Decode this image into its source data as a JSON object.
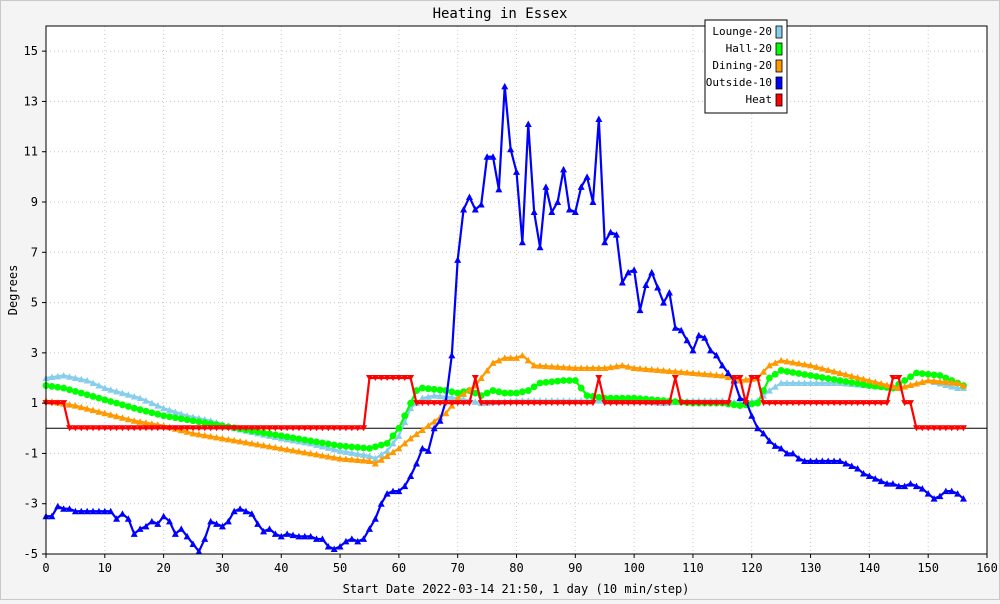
{
  "chart_data": {
    "type": "line",
    "title": "Heating in Essex",
    "xlabel": "Start Date 2022-03-14 21:50, 1 day (10 min/step)",
    "ylabel": "Degrees",
    "xlim": [
      0,
      160
    ],
    "ylim": [
      -5,
      16
    ],
    "xticks": [
      0,
      10,
      20,
      30,
      40,
      50,
      60,
      70,
      80,
      90,
      100,
      110,
      120,
      130,
      140,
      150,
      160
    ],
    "yticks": [
      -5,
      -3,
      -1,
      1,
      3,
      5,
      7,
      9,
      11,
      13,
      15
    ],
    "grid": true,
    "legend_position": "top-right",
    "series": [
      {
        "name": "Lounge-20",
        "color": "#87ceeb",
        "marker": "triangle",
        "points": [
          [
            0,
            2.0
          ],
          [
            3,
            2.1
          ],
          [
            5,
            2.0
          ],
          [
            7,
            1.9
          ],
          [
            10,
            1.6
          ],
          [
            13,
            1.4
          ],
          [
            16,
            1.2
          ],
          [
            20,
            0.8
          ],
          [
            24,
            0.5
          ],
          [
            28,
            0.3
          ],
          [
            32,
            0.0
          ],
          [
            36,
            -0.2
          ],
          [
            40,
            -0.4
          ],
          [
            45,
            -0.6
          ],
          [
            50,
            -0.9
          ],
          [
            55,
            -1.1
          ],
          [
            56,
            -1.2
          ],
          [
            58,
            -0.9
          ],
          [
            60,
            -0.3
          ],
          [
            62,
            0.8
          ],
          [
            64,
            1.2
          ],
          [
            66,
            1.3
          ],
          [
            70,
            1.2
          ],
          [
            72,
            1.1
          ],
          [
            74,
            1.0
          ],
          [
            80,
            1.1
          ],
          [
            85,
            1.1
          ],
          [
            90,
            1.1
          ],
          [
            95,
            1.1
          ],
          [
            100,
            1.1
          ],
          [
            105,
            1.0
          ],
          [
            110,
            1.1
          ],
          [
            115,
            1.1
          ],
          [
            118,
            1.0
          ],
          [
            121,
            1.1
          ],
          [
            123,
            1.5
          ],
          [
            125,
            1.8
          ],
          [
            130,
            1.8
          ],
          [
            135,
            1.8
          ],
          [
            140,
            1.7
          ],
          [
            145,
            1.6
          ],
          [
            150,
            1.9
          ],
          [
            155,
            1.6
          ],
          [
            156,
            1.6
          ]
        ]
      },
      {
        "name": "Hall-20",
        "color": "#00ff00",
        "marker": "circle",
        "points": [
          [
            0,
            1.7
          ],
          [
            3,
            1.6
          ],
          [
            6,
            1.4
          ],
          [
            9,
            1.2
          ],
          [
            12,
            1.0
          ],
          [
            15,
            0.8
          ],
          [
            20,
            0.5
          ],
          [
            25,
            0.3
          ],
          [
            30,
            0.1
          ],
          [
            35,
            -0.1
          ],
          [
            40,
            -0.3
          ],
          [
            45,
            -0.5
          ],
          [
            50,
            -0.7
          ],
          [
            55,
            -0.8
          ],
          [
            58,
            -0.6
          ],
          [
            60,
            0.0
          ],
          [
            62,
            1.0
          ],
          [
            63,
            1.5
          ],
          [
            64,
            1.6
          ],
          [
            68,
            1.5
          ],
          [
            70,
            1.4
          ],
          [
            72,
            1.5
          ],
          [
            74,
            1.3
          ],
          [
            76,
            1.5
          ],
          [
            78,
            1.4
          ],
          [
            80,
            1.4
          ],
          [
            82,
            1.5
          ],
          [
            84,
            1.8
          ],
          [
            88,
            1.9
          ],
          [
            90,
            1.9
          ],
          [
            92,
            1.3
          ],
          [
            95,
            1.2
          ],
          [
            100,
            1.2
          ],
          [
            105,
            1.1
          ],
          [
            110,
            1.0
          ],
          [
            115,
            1.0
          ],
          [
            118,
            0.9
          ],
          [
            121,
            1.0
          ],
          [
            123,
            2.0
          ],
          [
            125,
            2.3
          ],
          [
            130,
            2.1
          ],
          [
            135,
            1.9
          ],
          [
            140,
            1.7
          ],
          [
            144,
            1.6
          ],
          [
            148,
            2.2
          ],
          [
            152,
            2.1
          ],
          [
            155,
            1.8
          ],
          [
            156,
            1.7
          ]
        ]
      },
      {
        "name": "Dining-20",
        "color": "#ff9900",
        "marker": "triangle",
        "points": [
          [
            0,
            1.1
          ],
          [
            5,
            0.9
          ],
          [
            10,
            0.6
          ],
          [
            15,
            0.3
          ],
          [
            20,
            0.1
          ],
          [
            25,
            -0.2
          ],
          [
            30,
            -0.4
          ],
          [
            35,
            -0.6
          ],
          [
            40,
            -0.8
          ],
          [
            45,
            -1.0
          ],
          [
            50,
            -1.2
          ],
          [
            55,
            -1.3
          ],
          [
            56,
            -1.4
          ],
          [
            58,
            -1.1
          ],
          [
            60,
            -0.8
          ],
          [
            62,
            -0.4
          ],
          [
            65,
            0.1
          ],
          [
            68,
            0.6
          ],
          [
            70,
            1.2
          ],
          [
            73,
            1.7
          ],
          [
            76,
            2.6
          ],
          [
            78,
            2.8
          ],
          [
            80,
            2.8
          ],
          [
            81,
            2.9
          ],
          [
            83,
            2.5
          ],
          [
            90,
            2.4
          ],
          [
            95,
            2.4
          ],
          [
            98,
            2.5
          ],
          [
            100,
            2.4
          ],
          [
            105,
            2.3
          ],
          [
            110,
            2.2
          ],
          [
            115,
            2.1
          ],
          [
            118,
            1.9
          ],
          [
            121,
            2.0
          ],
          [
            123,
            2.5
          ],
          [
            125,
            2.7
          ],
          [
            130,
            2.5
          ],
          [
            135,
            2.2
          ],
          [
            140,
            1.9
          ],
          [
            145,
            1.6
          ],
          [
            150,
            1.9
          ],
          [
            155,
            1.8
          ],
          [
            156,
            1.7
          ]
        ]
      },
      {
        "name": "Outside-10",
        "color": "#0000ff",
        "marker": "triangle",
        "points": [
          [
            0,
            -3.5
          ],
          [
            1,
            -3.5
          ],
          [
            2,
            -3.1
          ],
          [
            3,
            -3.2
          ],
          [
            4,
            -3.2
          ],
          [
            5,
            -3.3
          ],
          [
            8,
            -3.3
          ],
          [
            11,
            -3.3
          ],
          [
            12,
            -3.6
          ],
          [
            13,
            -3.4
          ],
          [
            14,
            -3.6
          ],
          [
            15,
            -4.2
          ],
          [
            16,
            -4.0
          ],
          [
            17,
            -3.9
          ],
          [
            18,
            -3.7
          ],
          [
            19,
            -3.8
          ],
          [
            20,
            -3.5
          ],
          [
            21,
            -3.7
          ],
          [
            22,
            -4.2
          ],
          [
            23,
            -4.0
          ],
          [
            24,
            -4.3
          ],
          [
            25,
            -4.6
          ],
          [
            26,
            -4.9
          ],
          [
            27,
            -4.4
          ],
          [
            28,
            -3.7
          ],
          [
            29,
            -3.8
          ],
          [
            30,
            -3.9
          ],
          [
            31,
            -3.7
          ],
          [
            32,
            -3.3
          ],
          [
            33,
            -3.2
          ],
          [
            34,
            -3.3
          ],
          [
            35,
            -3.4
          ],
          [
            36,
            -3.8
          ],
          [
            37,
            -4.1
          ],
          [
            38,
            -4.0
          ],
          [
            39,
            -4.2
          ],
          [
            40,
            -4.3
          ],
          [
            41,
            -4.2
          ],
          [
            43,
            -4.3
          ],
          [
            45,
            -4.3
          ],
          [
            46,
            -4.4
          ],
          [
            47,
            -4.4
          ],
          [
            48,
            -4.7
          ],
          [
            49,
            -4.8
          ],
          [
            50,
            -4.7
          ],
          [
            51,
            -4.5
          ],
          [
            52,
            -4.4
          ],
          [
            53,
            -4.5
          ],
          [
            54,
            -4.4
          ],
          [
            55,
            -4.0
          ],
          [
            56,
            -3.6
          ],
          [
            57,
            -3.0
          ],
          [
            58,
            -2.6
          ],
          [
            59,
            -2.5
          ],
          [
            60,
            -2.5
          ],
          [
            61,
            -2.3
          ],
          [
            62,
            -1.9
          ],
          [
            63,
            -1.4
          ],
          [
            64,
            -0.8
          ],
          [
            65,
            -0.9
          ],
          [
            66,
            0.0
          ],
          [
            67,
            0.3
          ],
          [
            68,
            1.1
          ],
          [
            69,
            2.9
          ],
          [
            70,
            6.7
          ],
          [
            71,
            8.7
          ],
          [
            72,
            9.2
          ],
          [
            73,
            8.7
          ],
          [
            74,
            8.9
          ],
          [
            75,
            10.8
          ],
          [
            76,
            10.8
          ],
          [
            77,
            9.5
          ],
          [
            78,
            13.6
          ],
          [
            79,
            11.1
          ],
          [
            80,
            10.2
          ],
          [
            81,
            7.4
          ],
          [
            82,
            12.1
          ],
          [
            83,
            8.6
          ],
          [
            84,
            7.2
          ],
          [
            85,
            9.6
          ],
          [
            86,
            8.6
          ],
          [
            87,
            9.0
          ],
          [
            88,
            10.3
          ],
          [
            89,
            8.7
          ],
          [
            90,
            8.6
          ],
          [
            91,
            9.6
          ],
          [
            92,
            10.0
          ],
          [
            93,
            9.0
          ],
          [
            94,
            12.3
          ],
          [
            95,
            7.4
          ],
          [
            96,
            7.8
          ],
          [
            97,
            7.7
          ],
          [
            98,
            5.8
          ],
          [
            99,
            6.2
          ],
          [
            100,
            6.3
          ],
          [
            101,
            4.7
          ],
          [
            102,
            5.7
          ],
          [
            103,
            6.2
          ],
          [
            104,
            5.6
          ],
          [
            105,
            5.0
          ],
          [
            106,
            5.4
          ],
          [
            107,
            4.0
          ],
          [
            108,
            3.9
          ],
          [
            109,
            3.5
          ],
          [
            110,
            3.1
          ],
          [
            111,
            3.7
          ],
          [
            112,
            3.6
          ],
          [
            113,
            3.1
          ],
          [
            114,
            2.9
          ],
          [
            115,
            2.5
          ],
          [
            116,
            2.2
          ],
          [
            117,
            1.9
          ],
          [
            118,
            1.2
          ],
          [
            119,
            1.1
          ],
          [
            120,
            0.5
          ],
          [
            121,
            0.0
          ],
          [
            122,
            -0.2
          ],
          [
            123,
            -0.5
          ],
          [
            124,
            -0.7
          ],
          [
            125,
            -0.8
          ],
          [
            126,
            -1.0
          ],
          [
            127,
            -1.0
          ],
          [
            128,
            -1.2
          ],
          [
            129,
            -1.3
          ],
          [
            130,
            -1.3
          ],
          [
            135,
            -1.3
          ],
          [
            136,
            -1.4
          ],
          [
            138,
            -1.6
          ],
          [
            139,
            -1.8
          ],
          [
            140,
            -1.9
          ],
          [
            141,
            -2.0
          ],
          [
            142,
            -2.1
          ],
          [
            143,
            -2.2
          ],
          [
            144,
            -2.2
          ],
          [
            145,
            -2.3
          ],
          [
            146,
            -2.3
          ],
          [
            147,
            -2.2
          ],
          [
            148,
            -2.3
          ],
          [
            149,
            -2.4
          ],
          [
            150,
            -2.6
          ],
          [
            151,
            -2.8
          ],
          [
            152,
            -2.7
          ],
          [
            153,
            -2.5
          ],
          [
            154,
            -2.5
          ],
          [
            155,
            -2.6
          ],
          [
            156,
            -2.8
          ]
        ]
      },
      {
        "name": "Heat",
        "color": "#ff0000",
        "marker": "triangle-down",
        "points": [
          [
            0,
            1
          ],
          [
            3,
            1
          ],
          [
            4,
            0
          ],
          [
            54,
            0
          ],
          [
            55,
            2
          ],
          [
            62,
            2
          ],
          [
            63,
            1
          ],
          [
            72,
            1
          ],
          [
            73,
            2
          ],
          [
            74,
            1
          ],
          [
            93,
            1
          ],
          [
            94,
            2
          ],
          [
            95,
            1
          ],
          [
            106,
            1
          ],
          [
            107,
            2
          ],
          [
            108,
            1
          ],
          [
            116,
            1
          ],
          [
            117,
            2
          ],
          [
            118,
            2
          ],
          [
            119,
            1
          ],
          [
            120,
            2
          ],
          [
            121,
            2
          ],
          [
            122,
            1
          ],
          [
            143,
            1
          ],
          [
            144,
            2
          ],
          [
            145,
            2
          ],
          [
            146,
            1
          ],
          [
            147,
            1
          ],
          [
            148,
            0
          ],
          [
            156,
            0
          ]
        ]
      }
    ]
  }
}
